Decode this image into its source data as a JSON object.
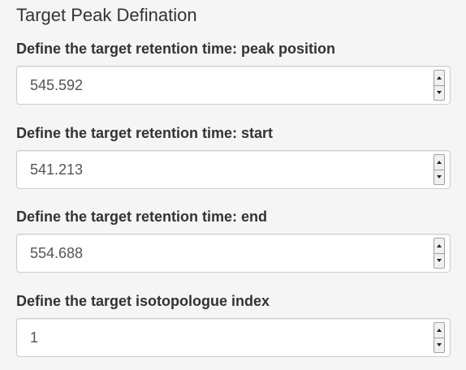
{
  "section": {
    "title": "Target Peak Defination"
  },
  "fields": [
    {
      "label": "Define the target retention time: peak position",
      "value": "545.592"
    },
    {
      "label": "Define the target retention time: start",
      "value": "541.213"
    },
    {
      "label": "Define the target retention time: end",
      "value": "554.688"
    },
    {
      "label": "Define the target isotopologue index",
      "value": "1"
    }
  ],
  "icons": {
    "increment": "chevron-up-icon",
    "decrement": "chevron-down-icon"
  },
  "colors": {
    "background": "#f5f5f5",
    "text": "#333333",
    "input_border": "#cccccc",
    "input_text": "#555555"
  }
}
